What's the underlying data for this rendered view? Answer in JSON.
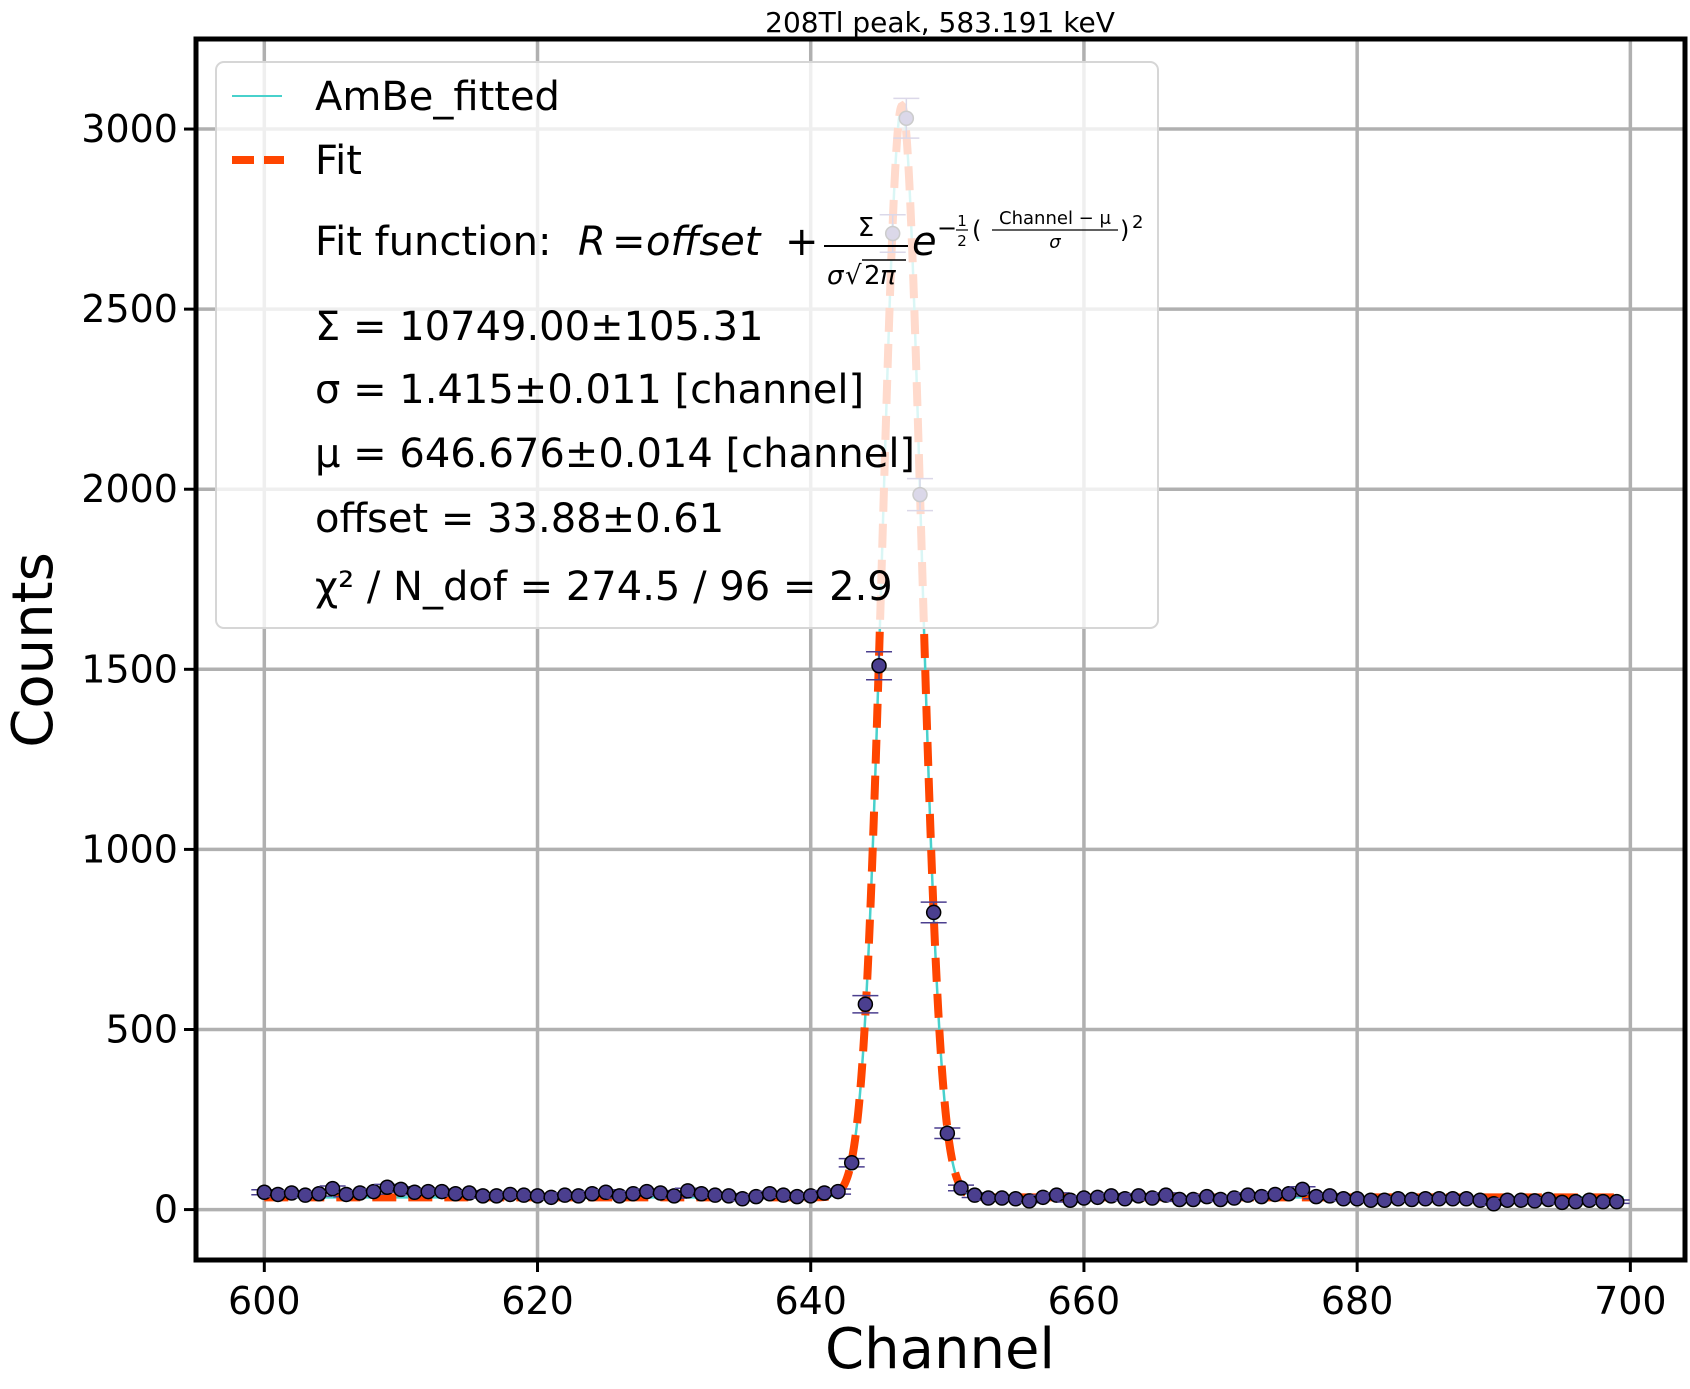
{
  "chart_data": {
    "type": "scatter",
    "title": "208Tl peak, 583.191 keV",
    "xlabel": "Channel",
    "ylabel": "Counts",
    "xlim": [
      595,
      704
    ],
    "ylim": [
      -140,
      3250
    ],
    "xticks": [
      600,
      620,
      640,
      660,
      680,
      700
    ],
    "yticks": [
      0,
      500,
      1000,
      1500,
      2000,
      2500,
      3000
    ],
    "grid": true,
    "legend_position": "top-left",
    "legend": {
      "data_label": "AmBe_fitted",
      "fit_label": "Fit",
      "fit_function_prefix": "Fit function:",
      "fit_function_expr": "R = offset + Σ/(σ√2π) e^(−½((Channel − μ)/σ)²)",
      "sigma_sum": "Σ = 10749.00±105.31",
      "sigma_width": "σ = 1.415±0.011 [channel]",
      "mu": "μ = 646.676±0.014 [channel]",
      "offset": "offset = 33.88±0.61",
      "chi2": "χ² / N_dof = 274.5 / 96 = 2.9"
    },
    "fit_params": {
      "Sigma": 10749.0,
      "sigma": 1.415,
      "mu": 646.676,
      "offset": 33.88
    },
    "colors": {
      "data_face": "#4b3f8f",
      "data_edge": "#000000",
      "errorbar": "#4b3f8f",
      "fit_line": "#ff4500",
      "fitted_line": "#48d1cc",
      "grid": "#b0b0b0",
      "axes": "#000000"
    },
    "series": [
      {
        "name": "AmBe_fitted",
        "x": [
          600,
          601,
          602,
          603,
          604,
          605,
          606,
          607,
          608,
          609,
          610,
          611,
          612,
          613,
          614,
          615,
          616,
          617,
          618,
          619,
          620,
          621,
          622,
          623,
          624,
          625,
          626,
          627,
          628,
          629,
          630,
          631,
          632,
          633,
          634,
          635,
          636,
          637,
          638,
          639,
          640,
          641,
          642,
          643,
          644,
          645,
          646,
          647,
          648,
          649,
          650,
          651,
          652,
          653,
          654,
          655,
          656,
          657,
          658,
          659,
          660,
          661,
          662,
          663,
          664,
          665,
          666,
          667,
          668,
          669,
          670,
          671,
          672,
          673,
          674,
          675,
          676,
          677,
          678,
          679,
          680,
          681,
          682,
          683,
          684,
          685,
          686,
          687,
          688,
          689,
          690,
          691,
          692,
          693,
          694,
          695,
          696,
          697,
          698,
          699
        ],
        "values": [
          48,
          42,
          46,
          40,
          44,
          58,
          42,
          46,
          50,
          62,
          56,
          48,
          50,
          50,
          44,
          46,
          38,
          38,
          42,
          40,
          38,
          34,
          40,
          38,
          44,
          48,
          38,
          44,
          50,
          46,
          38,
          52,
          44,
          40,
          38,
          30,
          36,
          44,
          40,
          36,
          38,
          46,
          50,
          130,
          570,
          1510,
          2710,
          3030,
          1985,
          825,
          212,
          60,
          40,
          32,
          32,
          30,
          24,
          34,
          40,
          26,
          32,
          34,
          38,
          30,
          38,
          32,
          40,
          28,
          28,
          36,
          28,
          32,
          40,
          36,
          42,
          44,
          56,
          36,
          38,
          30,
          30,
          26,
          26,
          30,
          28,
          30,
          30,
          30,
          30,
          26,
          16,
          26,
          26,
          24,
          28,
          20,
          22,
          26,
          22,
          22
        ]
      }
    ]
  }
}
